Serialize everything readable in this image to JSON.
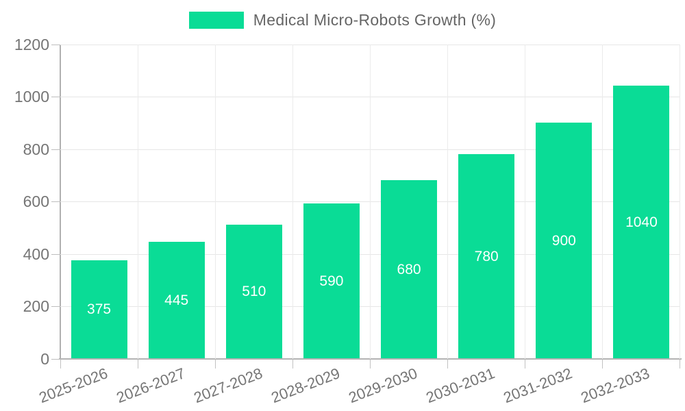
{
  "legend": {
    "label": "Medical Micro-Robots Growth (%)",
    "swatch_color": "#0adc96"
  },
  "chart_data": {
    "type": "bar",
    "title": "Medical Micro-Robots Growth (%)",
    "categories": [
      "2025-2026",
      "2026-2027",
      "2027-2028",
      "2028-2029",
      "2029-2030",
      "2030-2031",
      "2031-2032",
      "2032-2033"
    ],
    "values": [
      375,
      445,
      510,
      590,
      680,
      780,
      900,
      1040
    ],
    "value_labels": [
      "375",
      "445",
      "510",
      "590",
      "680",
      "780",
      "900",
      "1040"
    ],
    "xlabel": "",
    "ylabel": "",
    "ylim": [
      0,
      1200
    ],
    "yticks": [
      0,
      200,
      400,
      600,
      800,
      1000,
      1200
    ],
    "grid": true,
    "legend_position": "top-center",
    "colors": {
      "bar": "#0adc96",
      "value_label": "#ffffff",
      "axis_text": "#757575",
      "legend_text": "#666666",
      "gridline": "#e6e6e6",
      "axis_line": "#b0b0b0"
    }
  }
}
